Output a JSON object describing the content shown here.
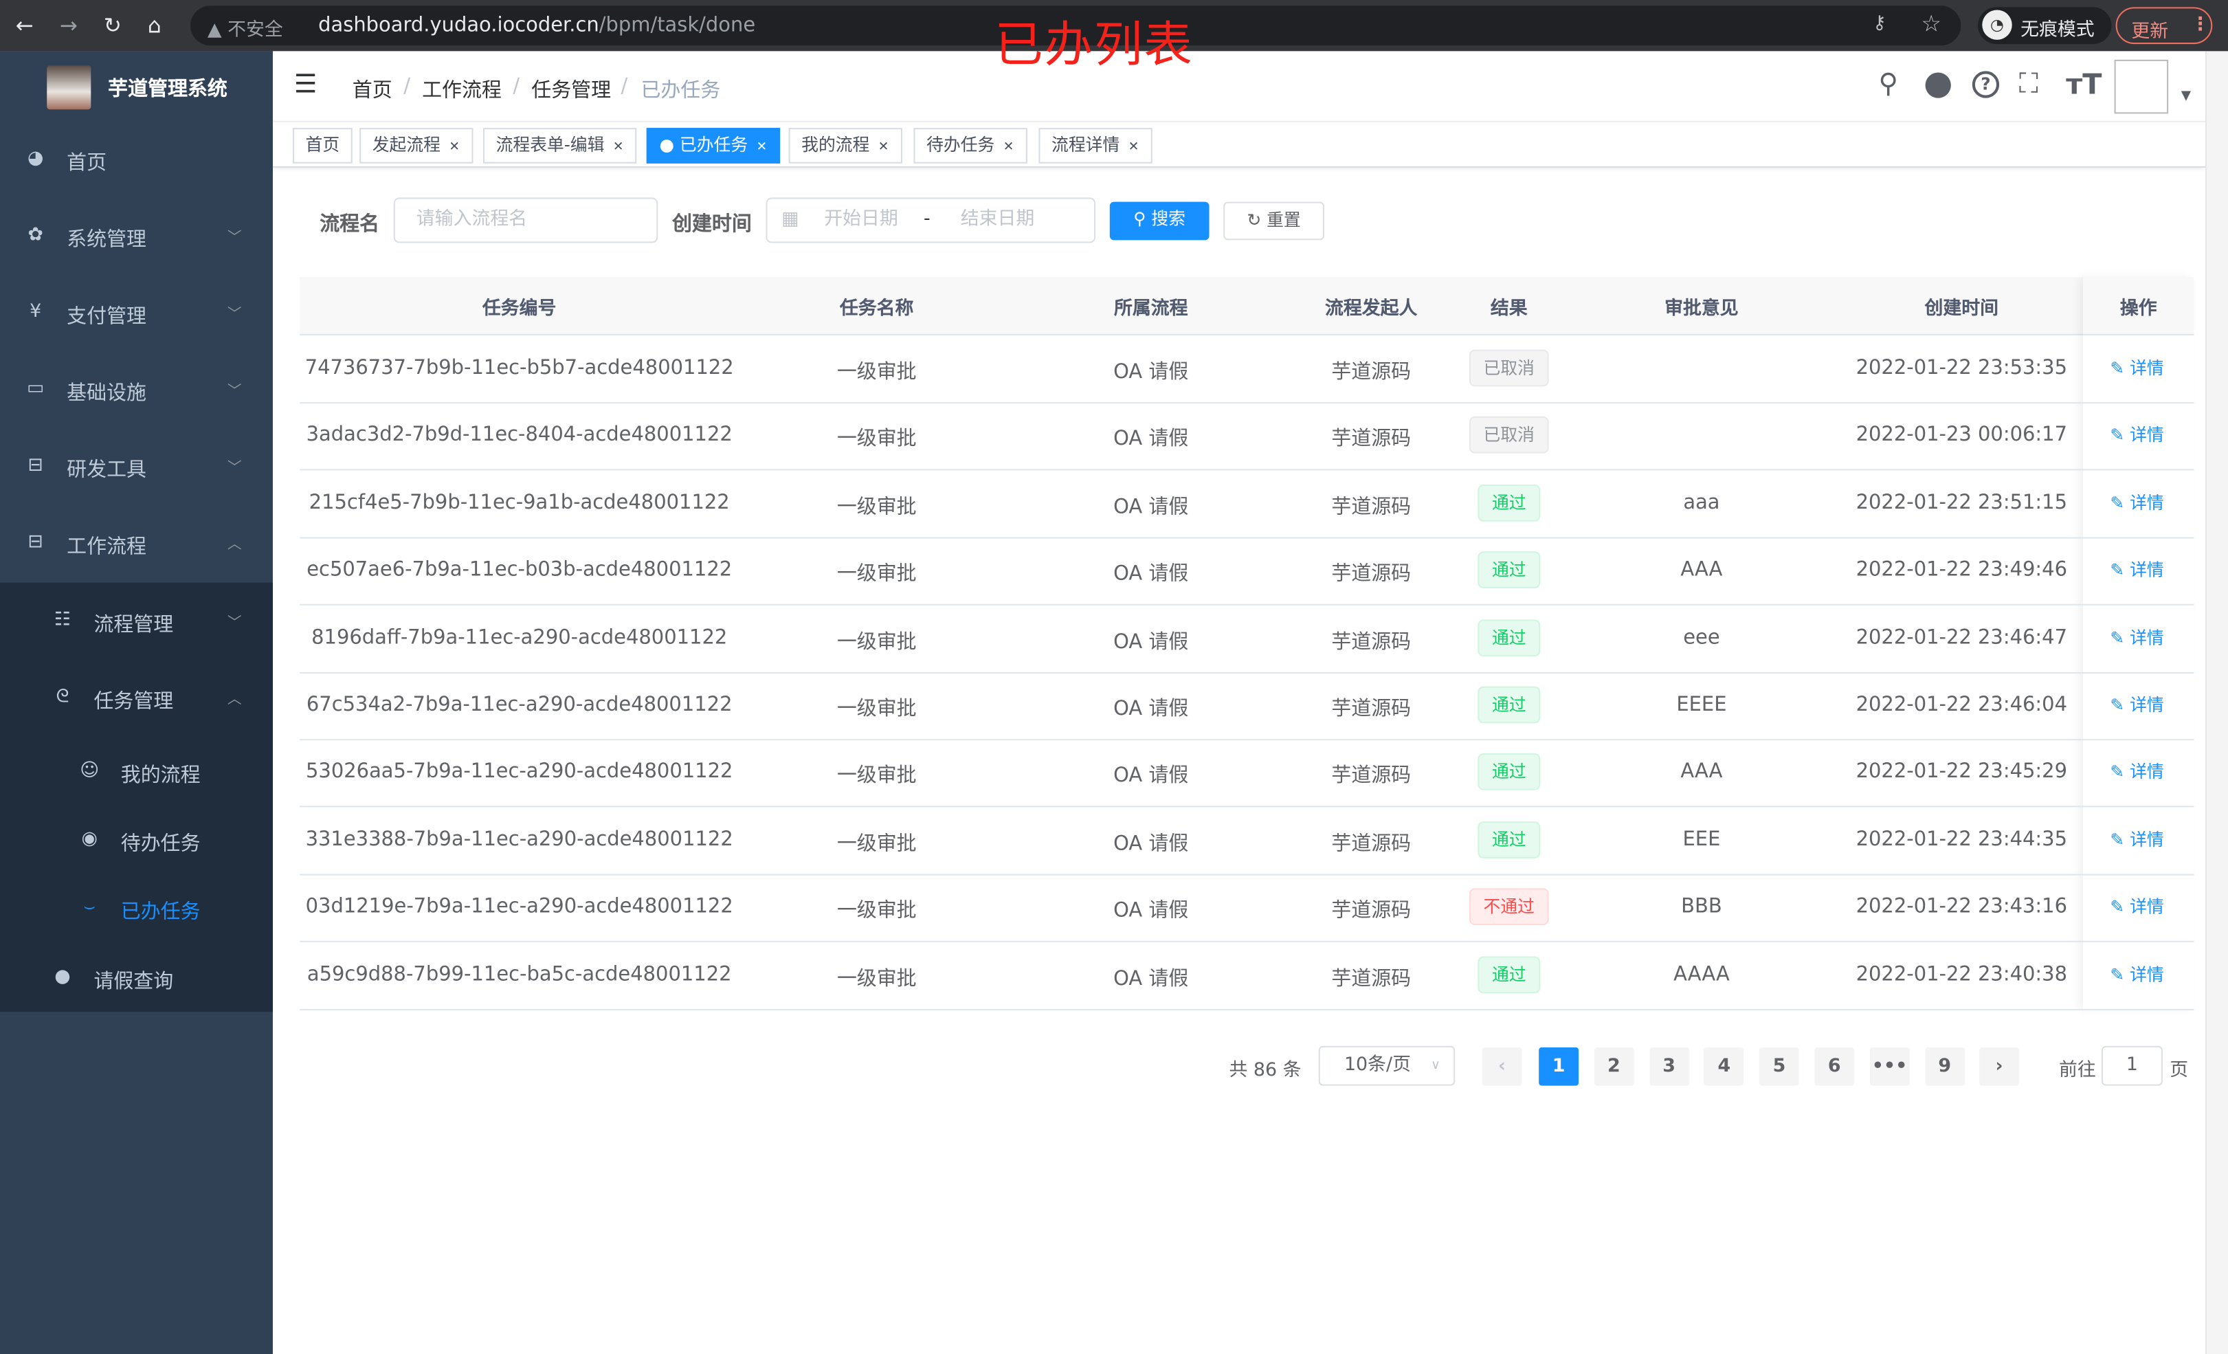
{
  "browser": {
    "security": "不安全",
    "url_host": "dashboard.yudao.iocoder.cn",
    "url_path": "/bpm/task/done",
    "incognito": "无痕模式",
    "update": "更新"
  },
  "annotation": "已办列表",
  "sidebar": {
    "app_title": "芋道管理系统",
    "items": [
      {
        "label": "首页",
        "icon": "dashboard-icon"
      },
      {
        "label": "系统管理",
        "icon": "gear-icon"
      },
      {
        "label": "支付管理",
        "icon": "yen-icon"
      },
      {
        "label": "基础设施",
        "icon": "monitor-icon"
      },
      {
        "label": "研发工具",
        "icon": "toolbox-icon"
      },
      {
        "label": "工作流程",
        "icon": "toolbox-icon"
      },
      {
        "label": "流程管理",
        "icon": "list-icon"
      },
      {
        "label": "任务管理",
        "icon": "task-icon"
      },
      {
        "label": "我的流程",
        "icon": "people-icon"
      },
      {
        "label": "待办任务",
        "icon": "eye-open-icon"
      },
      {
        "label": "已办任务",
        "icon": "eye-closed-icon",
        "active": true
      },
      {
        "label": "请假查询",
        "icon": "user-icon"
      }
    ]
  },
  "breadcrumb": [
    "首页",
    "工作流程",
    "任务管理",
    "已办任务"
  ],
  "tags": [
    {
      "label": "首页"
    },
    {
      "label": "发起流程"
    },
    {
      "label": "流程表单-编辑"
    },
    {
      "label": "已办任务",
      "active": true
    },
    {
      "label": "我的流程"
    },
    {
      "label": "待办任务"
    },
    {
      "label": "流程详情"
    }
  ],
  "search": {
    "name_label": "流程名",
    "name_placeholder": "请输入流程名",
    "time_label": "创建时间",
    "start_placeholder": "开始日期",
    "range_sep": "-",
    "end_placeholder": "结束日期",
    "search_btn": "搜索",
    "reset_btn": "重置"
  },
  "table": {
    "headers": [
      "任务编号",
      "任务名称",
      "所属流程",
      "流程发起人",
      "结果",
      "审批意见",
      "创建时间",
      "操作"
    ],
    "detail_label": "详情",
    "rows": [
      {
        "id": "74736737-7b9b-11ec-b5b7-acde48001122",
        "name": "一级审批",
        "process": "OA 请假",
        "starter": "芋道源码",
        "result": "已取消",
        "status": "cancel",
        "comment": "",
        "time": "2022-01-22 23:53:35"
      },
      {
        "id": "3adac3d2-7b9d-11ec-8404-acde48001122",
        "name": "一级审批",
        "process": "OA 请假",
        "starter": "芋道源码",
        "result": "已取消",
        "status": "cancel",
        "comment": "",
        "time": "2022-01-23 00:06:17"
      },
      {
        "id": "215cf4e5-7b9b-11ec-9a1b-acde48001122",
        "name": "一级审批",
        "process": "OA 请假",
        "starter": "芋道源码",
        "result": "通过",
        "status": "pass",
        "comment": "aaa",
        "time": "2022-01-22 23:51:15"
      },
      {
        "id": "ec507ae6-7b9a-11ec-b03b-acde48001122",
        "name": "一级审批",
        "process": "OA 请假",
        "starter": "芋道源码",
        "result": "通过",
        "status": "pass",
        "comment": "AAA",
        "time": "2022-01-22 23:49:46"
      },
      {
        "id": "8196daff-7b9a-11ec-a290-acde48001122",
        "name": "一级审批",
        "process": "OA 请假",
        "starter": "芋道源码",
        "result": "通过",
        "status": "pass",
        "comment": "eee",
        "time": "2022-01-22 23:46:47"
      },
      {
        "id": "67c534a2-7b9a-11ec-a290-acde48001122",
        "name": "一级审批",
        "process": "OA 请假",
        "starter": "芋道源码",
        "result": "通过",
        "status": "pass",
        "comment": "EEEE",
        "time": "2022-01-22 23:46:04"
      },
      {
        "id": "53026aa5-7b9a-11ec-a290-acde48001122",
        "name": "一级审批",
        "process": "OA 请假",
        "starter": "芋道源码",
        "result": "通过",
        "status": "pass",
        "comment": "AAA",
        "time": "2022-01-22 23:45:29"
      },
      {
        "id": "331e3388-7b9a-11ec-a290-acde48001122",
        "name": "一级审批",
        "process": "OA 请假",
        "starter": "芋道源码",
        "result": "通过",
        "status": "pass",
        "comment": "EEE",
        "time": "2022-01-22 23:44:35"
      },
      {
        "id": "03d1219e-7b9a-11ec-a290-acde48001122",
        "name": "一级审批",
        "process": "OA 请假",
        "starter": "芋道源码",
        "result": "不通过",
        "status": "reject",
        "comment": "BBB",
        "time": "2022-01-22 23:43:16"
      },
      {
        "id": "a59c9d88-7b99-11ec-ba5c-acde48001122",
        "name": "一级审批",
        "process": "OA 请假",
        "starter": "芋道源码",
        "result": "通过",
        "status": "pass",
        "comment": "AAAA",
        "time": "2022-01-22 23:40:38"
      }
    ]
  },
  "pagination": {
    "total": "共 86 条",
    "page_size": "10条/页",
    "pages": [
      "1",
      "2",
      "3",
      "4",
      "5",
      "6",
      "•••",
      "9"
    ],
    "current": "1",
    "goto_label": "前往",
    "goto_value": "1",
    "page_suffix": "页"
  },
  "colors": {
    "accent": "#1890ff",
    "sidebar": "#304156",
    "submenu": "#1f2d3d",
    "pass": "#13ce66",
    "reject": "#ff4949",
    "cancel": "#909399"
  }
}
